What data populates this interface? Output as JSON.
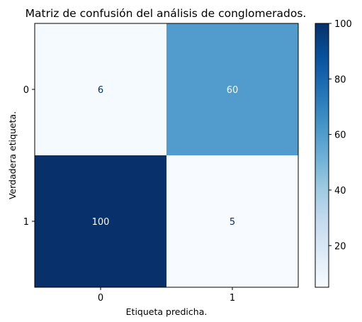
{
  "chart_data": {
    "type": "heatmap",
    "title": "Matriz de confusión del análisis de conglomerados.",
    "xlabel": "Etiqueta predicha.",
    "ylabel": "Verdadera etiqueta.",
    "x_categories": [
      "0",
      "1"
    ],
    "y_categories": [
      "0",
      "1"
    ],
    "values": [
      [
        6,
        60
      ],
      [
        100,
        5
      ]
    ],
    "colormap": "Blues",
    "colorbar": {
      "range": [
        5,
        100
      ],
      "ticks": [
        20,
        40,
        60,
        80,
        100
      ]
    },
    "grid": false
  }
}
